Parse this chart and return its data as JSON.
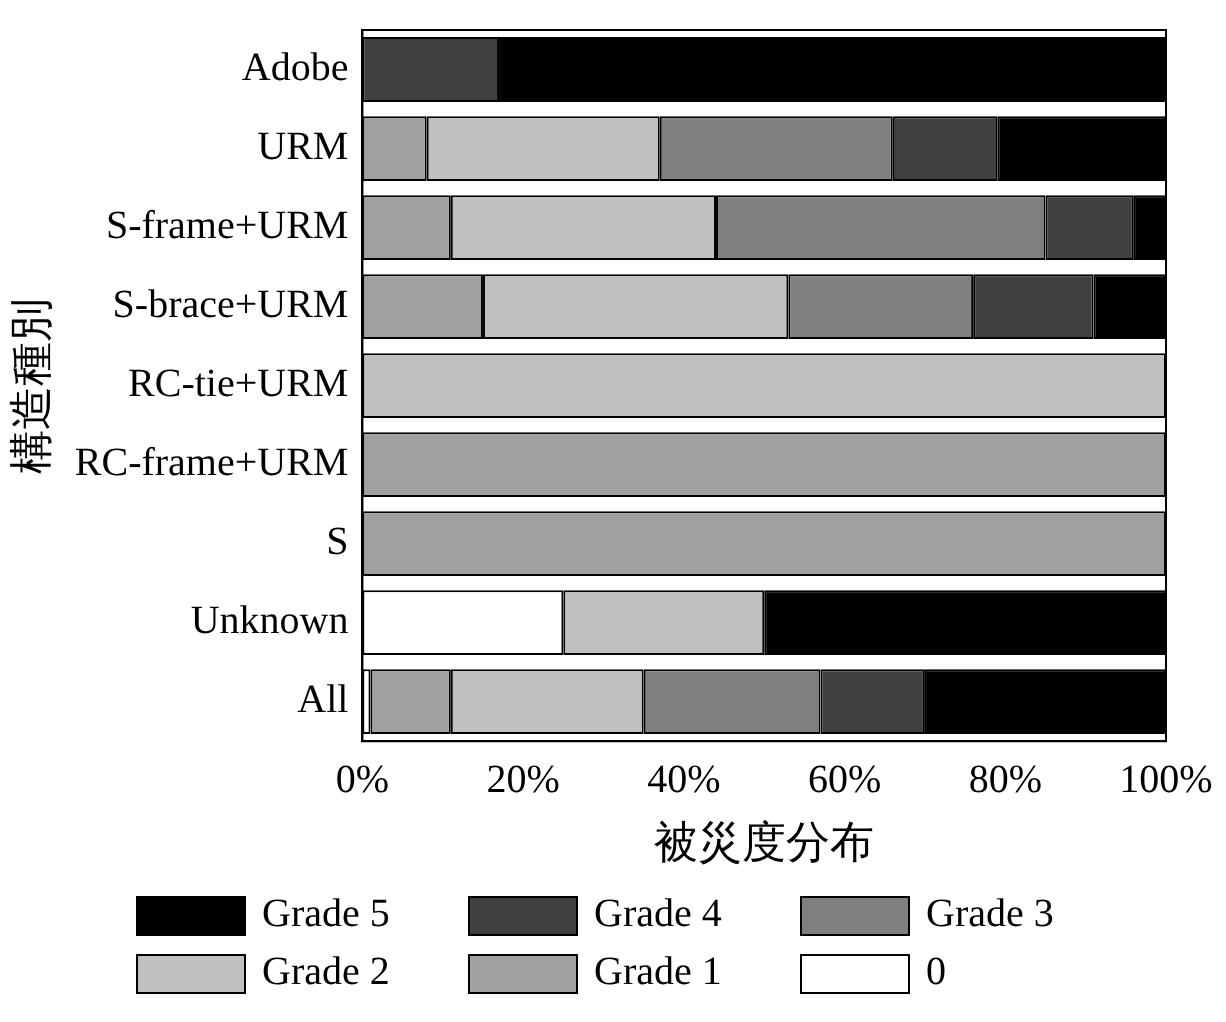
{
  "chart_data": {
    "type": "bar",
    "orientation": "horizontal",
    "stacked": true,
    "xlabel": "被災度分布",
    "ylabel": "構造種別",
    "categories": [
      "Adobe",
      "URM",
      "S-frame+URM",
      "S-brace+URM",
      "RC-tie+URM",
      "RC-frame+URM",
      "S",
      "Unknown",
      "All"
    ],
    "series": [
      {
        "name": "0",
        "color": "#ffffff",
        "values": [
          0,
          0,
          0,
          0,
          0,
          0,
          0,
          25,
          1
        ]
      },
      {
        "name": "Grade 1",
        "color": "#a0a0a0",
        "values": [
          0,
          8,
          11,
          15,
          0,
          100,
          100,
          0,
          10
        ]
      },
      {
        "name": "Grade 2",
        "color": "#c0c0c0",
        "values": [
          0,
          29,
          33,
          38,
          100,
          0,
          0,
          25,
          24
        ]
      },
      {
        "name": "Grade 3",
        "color": "#808080",
        "values": [
          0,
          29,
          41,
          23,
          0,
          0,
          0,
          0,
          22
        ]
      },
      {
        "name": "Grade 4",
        "color": "#404040",
        "values": [
          17,
          13,
          11,
          15,
          0,
          0,
          0,
          0,
          13
        ]
      },
      {
        "name": "Grade 5",
        "color": "#000000",
        "values": [
          83,
          21,
          4,
          9,
          0,
          0,
          0,
          50,
          30
        ]
      }
    ],
    "xlim": [
      0,
      100
    ],
    "xticks": [
      {
        "value": 0,
        "label": "0%"
      },
      {
        "value": 20,
        "label": "20%"
      },
      {
        "value": 40,
        "label": "40%"
      },
      {
        "value": 60,
        "label": "60%"
      },
      {
        "value": 80,
        "label": "80%"
      },
      {
        "value": 100,
        "label": "100%"
      }
    ],
    "grid": false,
    "legend": "bottom"
  }
}
